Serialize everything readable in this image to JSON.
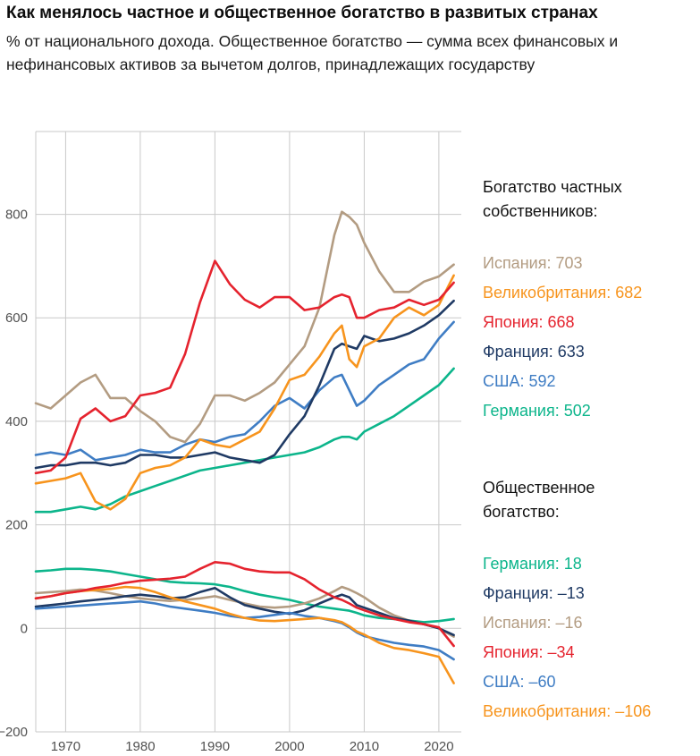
{
  "header": {
    "title": "Как менялось частное и общественное богатство в развитых странах",
    "subtitle": "% от национального дохода. Общественное богатство — сумма всех финансовых и нефинансовых активов за вычетом долгов, принадлежащих государству"
  },
  "colors": {
    "spain": "#b39c82",
    "uk": "#f7941d",
    "japan": "#e5232e",
    "france": "#1f3a64",
    "usa": "#3f7dc4",
    "germany": "#0cb58b",
    "grid": "#c9c9c9",
    "axis_text": "#515151"
  },
  "legend": {
    "private": {
      "heading": "Богатство частных собственников:",
      "items": [
        {
          "key": "spain",
          "country": "Испания",
          "value": "703",
          "color_key": "spain"
        },
        {
          "key": "uk",
          "country": "Великобритания",
          "value": "682",
          "color_key": "uk"
        },
        {
          "key": "japan",
          "country": "Япония",
          "value": "668",
          "color_key": "japan"
        },
        {
          "key": "france",
          "country": "Франция",
          "value": "633",
          "color_key": "france"
        },
        {
          "key": "usa",
          "country": "США",
          "value": "592",
          "color_key": "usa"
        },
        {
          "key": "germany",
          "country": "Германия",
          "value": "502",
          "color_key": "germany"
        }
      ]
    },
    "public": {
      "heading": "Общественное богатство:",
      "items": [
        {
          "key": "germany",
          "country": "Германия",
          "value": "18",
          "color_key": "germany"
        },
        {
          "key": "france",
          "country": "Франция",
          "value": "–13",
          "color_key": "france"
        },
        {
          "key": "spain",
          "country": "Испания",
          "value": "–16",
          "color_key": "spain"
        },
        {
          "key": "japan",
          "country": "Япония",
          "value": "–34",
          "color_key": "japan"
        },
        {
          "key": "usa",
          "country": "США",
          "value": "–60",
          "color_key": "usa"
        },
        {
          "key": "uk",
          "country": "Великобритания",
          "value": "–106",
          "color_key": "uk"
        }
      ]
    }
  },
  "chart_data": {
    "type": "line",
    "ylabel": "% от национального дохода",
    "xlim": [
      1966,
      2023
    ],
    "ylim": [
      -200,
      960
    ],
    "grid": true,
    "x_ticks": [
      1970,
      1980,
      1990,
      2000,
      2010,
      2020
    ],
    "x_tick_labels": [
      "1970",
      "1980",
      "1990",
      "2000",
      "2010",
      "2020"
    ],
    "y_ticks": [
      -200,
      0,
      200,
      400,
      600,
      800
    ],
    "y_tick_labels": [
      "−200",
      "0",
      "200",
      "400",
      "600",
      "800"
    ],
    "x": [
      1966,
      1968,
      1970,
      1972,
      1974,
      1976,
      1978,
      1980,
      1982,
      1984,
      1986,
      1988,
      1990,
      1992,
      1994,
      1996,
      1998,
      2000,
      2002,
      2004,
      2006,
      2007,
      2008,
      2009,
      2010,
      2012,
      2014,
      2016,
      2018,
      2020,
      2022
    ],
    "series": [
      {
        "key": "germany-private",
        "country": "Германия",
        "group": "private",
        "color_key": "germany",
        "values": [
          225,
          225,
          230,
          235,
          230,
          240,
          255,
          265,
          275,
          285,
          295,
          305,
          310,
          315,
          320,
          325,
          330,
          335,
          340,
          350,
          365,
          370,
          370,
          365,
          380,
          395,
          410,
          430,
          450,
          470,
          502
        ]
      },
      {
        "key": "usa-private",
        "country": "США",
        "group": "private",
        "color_key": "usa",
        "values": [
          335,
          340,
          335,
          345,
          325,
          330,
          335,
          345,
          340,
          340,
          355,
          365,
          360,
          370,
          375,
          400,
          430,
          445,
          425,
          460,
          485,
          490,
          460,
          430,
          440,
          470,
          490,
          510,
          520,
          560,
          592
        ]
      },
      {
        "key": "france-private",
        "country": "Франция",
        "group": "private",
        "color_key": "france",
        "values": [
          310,
          315,
          315,
          320,
          320,
          315,
          320,
          335,
          335,
          330,
          330,
          335,
          340,
          330,
          325,
          320,
          335,
          375,
          410,
          470,
          540,
          550,
          545,
          540,
          565,
          555,
          560,
          570,
          585,
          605,
          633
        ]
      },
      {
        "key": "spain-private",
        "country": "Испания",
        "group": "private",
        "color_key": "spain",
        "values": [
          435,
          425,
          450,
          475,
          490,
          445,
          445,
          420,
          400,
          370,
          360,
          395,
          450,
          450,
          440,
          455,
          475,
          510,
          545,
          620,
          760,
          805,
          795,
          780,
          745,
          690,
          650,
          650,
          670,
          680,
          703
        ]
      },
      {
        "key": "uk-private",
        "country": "Великобритания",
        "group": "private",
        "color_key": "uk",
        "values": [
          280,
          285,
          290,
          300,
          245,
          230,
          250,
          300,
          310,
          315,
          330,
          365,
          355,
          350,
          365,
          380,
          425,
          480,
          490,
          525,
          570,
          585,
          520,
          505,
          545,
          560,
          600,
          620,
          605,
          625,
          682
        ]
      },
      {
        "key": "japan-private",
        "country": "Япония",
        "group": "private",
        "color_key": "japan",
        "values": [
          300,
          305,
          330,
          405,
          425,
          400,
          410,
          450,
          455,
          465,
          530,
          630,
          710,
          665,
          635,
          620,
          640,
          640,
          615,
          620,
          640,
          645,
          640,
          600,
          600,
          615,
          620,
          635,
          625,
          635,
          668
        ]
      },
      {
        "key": "germany-public",
        "country": "Германия",
        "group": "public",
        "color_key": "germany",
        "values": [
          110,
          112,
          115,
          115,
          113,
          110,
          105,
          100,
          95,
          90,
          88,
          87,
          85,
          80,
          72,
          65,
          60,
          55,
          48,
          42,
          38,
          36,
          34,
          30,
          25,
          20,
          18,
          15,
          12,
          14,
          18
        ]
      },
      {
        "key": "spain-public",
        "country": "Испания",
        "group": "public",
        "color_key": "spain",
        "values": [
          68,
          70,
          72,
          75,
          73,
          68,
          62,
          58,
          55,
          53,
          55,
          58,
          62,
          55,
          48,
          42,
          40,
          42,
          48,
          58,
          72,
          80,
          75,
          68,
          60,
          40,
          25,
          15,
          8,
          0,
          -16
        ]
      },
      {
        "key": "france-public",
        "country": "Франция",
        "group": "public",
        "color_key": "france",
        "values": [
          42,
          45,
          48,
          52,
          55,
          58,
          62,
          65,
          62,
          58,
          60,
          70,
          78,
          60,
          45,
          38,
          32,
          28,
          35,
          48,
          60,
          65,
          60,
          45,
          40,
          30,
          20,
          15,
          8,
          0,
          -13
        ]
      },
      {
        "key": "usa-public",
        "country": "США",
        "group": "public",
        "color_key": "usa",
        "values": [
          38,
          40,
          42,
          44,
          46,
          48,
          50,
          52,
          48,
          42,
          38,
          34,
          30,
          24,
          20,
          22,
          26,
          30,
          24,
          20,
          14,
          10,
          2,
          -8,
          -15,
          -22,
          -28,
          -32,
          -35,
          -42,
          -60
        ]
      },
      {
        "key": "uk-public",
        "country": "Великобритания",
        "group": "public",
        "color_key": "uk",
        "values": [
          58,
          62,
          68,
          72,
          74,
          76,
          80,
          78,
          70,
          60,
          52,
          45,
          38,
          28,
          20,
          15,
          14,
          16,
          18,
          20,
          16,
          12,
          4,
          -6,
          -12,
          -28,
          -38,
          -42,
          -48,
          -55,
          -106
        ]
      },
      {
        "key": "japan-public",
        "country": "Япония",
        "group": "public",
        "color_key": "japan",
        "values": [
          58,
          62,
          68,
          72,
          78,
          82,
          88,
          92,
          94,
          96,
          100,
          115,
          128,
          125,
          115,
          110,
          108,
          108,
          95,
          75,
          60,
          55,
          48,
          40,
          35,
          25,
          18,
          12,
          8,
          2,
          -34
        ]
      }
    ]
  }
}
